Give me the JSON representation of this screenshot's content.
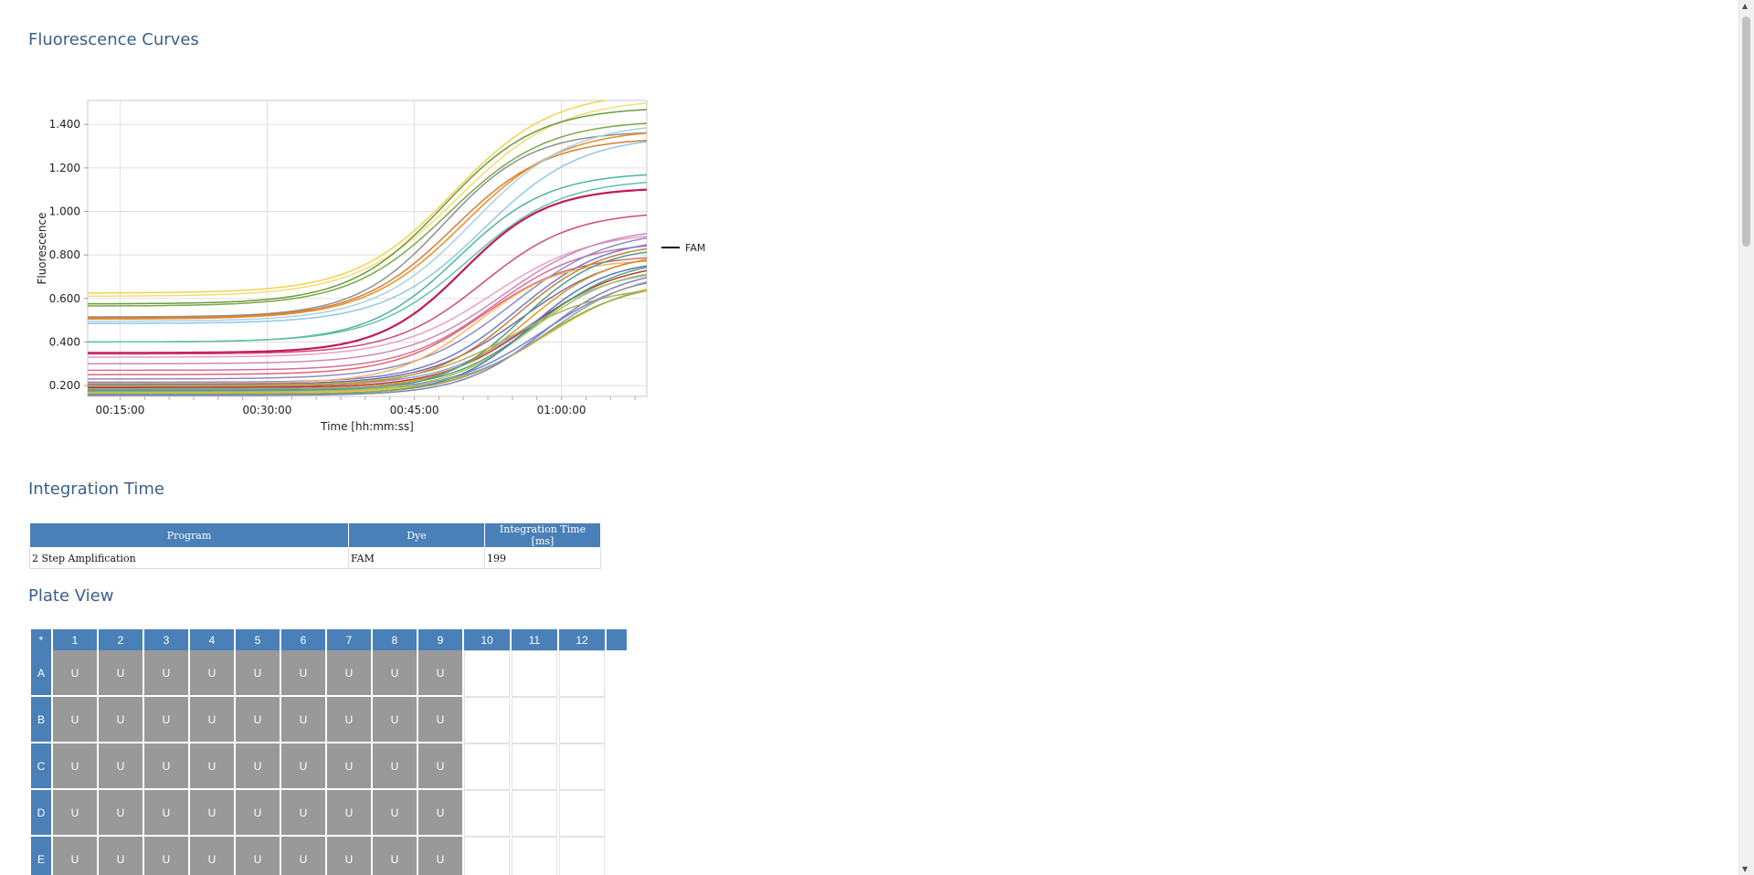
{
  "sections": {
    "fluorescence_title": "Fluorescence Curves",
    "integration_title": "Integration Time",
    "plate_title": "Plate View"
  },
  "chart_data": {
    "type": "line",
    "xlabel": "Time [hh:mm:ss]",
    "ylabel": "Fluorescence",
    "x_ticks": [
      "00:15:00",
      "00:30:00",
      "00:45:00",
      "01:00:00"
    ],
    "x_tick_minutes": [
      15,
      30,
      45,
      60
    ],
    "xlim_minutes": [
      11.7,
      68.7
    ],
    "y_ticks": [
      "0.200",
      "0.400",
      "0.600",
      "0.800",
      "1.000",
      "1.200",
      "1.400"
    ],
    "y_tick_values": [
      0.2,
      0.4,
      0.6,
      0.8,
      1.0,
      1.2,
      1.4
    ],
    "ylim": [
      0.15,
      1.51
    ],
    "grid": true,
    "legend": {
      "position": "right",
      "entries": [
        "FAM"
      ]
    },
    "curve_model": "sigmoid: y = base + (plateau - base) / (1 + exp(-(t_minutes - midpoint)/slope))",
    "series": [
      {
        "base": 0.625,
        "plateau": 1.55,
        "midpoint": 49.0,
        "slope": 5.0,
        "color": "#f2d24f"
      },
      {
        "base": 0.61,
        "plateau": 1.52,
        "midpoint": 49.5,
        "slope": 5.2,
        "color": "#f5dc74"
      },
      {
        "base": 0.575,
        "plateau": 1.48,
        "midpoint": 48.0,
        "slope": 4.8,
        "color": "#6c9a3c"
      },
      {
        "base": 0.565,
        "plateau": 1.42,
        "midpoint": 48.5,
        "slope": 5.0,
        "color": "#7aa848"
      },
      {
        "base": 0.515,
        "plateau": 1.37,
        "midpoint": 48.0,
        "slope": 4.5,
        "color": "#909090"
      },
      {
        "base": 0.51,
        "plateau": 1.34,
        "midpoint": 49.0,
        "slope": 4.8,
        "color": "#d1803a"
      },
      {
        "base": 0.505,
        "plateau": 1.38,
        "midpoint": 50.0,
        "slope": 5.0,
        "color": "#f08a24"
      },
      {
        "base": 0.495,
        "plateau": 1.41,
        "midpoint": 51.0,
        "slope": 5.0,
        "color": "#a7d1ea"
      },
      {
        "base": 0.485,
        "plateau": 1.35,
        "midpoint": 52.0,
        "slope": 5.0,
        "color": "#8fc8e8"
      },
      {
        "base": 0.4,
        "plateau": 1.18,
        "midpoint": 49.5,
        "slope": 4.6,
        "color": "#4fb39e"
      },
      {
        "base": 0.4,
        "plateau": 1.15,
        "midpoint": 50.5,
        "slope": 4.8,
        "color": "#66c2a5"
      },
      {
        "base": 0.35,
        "plateau": 1.11,
        "midpoint": 50.0,
        "slope": 4.3,
        "color": "#c2185b"
      },
      {
        "base": 0.345,
        "plateau": 1.0,
        "midpoint": 52.0,
        "slope": 4.6,
        "color": "#d04a78"
      },
      {
        "base": 0.33,
        "plateau": 0.91,
        "midpoint": 53.0,
        "slope": 5.0,
        "color": "#e8a0c0"
      },
      {
        "base": 0.3,
        "plateau": 0.93,
        "midpoint": 54.0,
        "slope": 5.0,
        "color": "#cc88bb"
      },
      {
        "base": 0.27,
        "plateau": 0.86,
        "midpoint": 53.0,
        "slope": 4.6,
        "color": "#d46fa0"
      },
      {
        "base": 0.25,
        "plateau": 0.8,
        "midpoint": 52.0,
        "slope": 4.5,
        "color": "#e06666"
      },
      {
        "base": 0.23,
        "plateau": 0.92,
        "midpoint": 55.0,
        "slope": 5.0,
        "color": "#8c8cc8"
      },
      {
        "base": 0.215,
        "plateau": 0.88,
        "midpoint": 55.5,
        "slope": 4.5,
        "color": "#6f7fc8"
      },
      {
        "base": 0.21,
        "plateau": 0.78,
        "midpoint": 51.5,
        "slope": 4.2,
        "color": "#f7b267"
      },
      {
        "base": 0.205,
        "plateau": 0.82,
        "midpoint": 56.0,
        "slope": 4.8,
        "color": "#7b68a6"
      },
      {
        "base": 0.2,
        "plateau": 0.74,
        "midpoint": 56.5,
        "slope": 4.5,
        "color": "#9aa0d4"
      },
      {
        "base": 0.195,
        "plateau": 0.86,
        "midpoint": 55.5,
        "slope": 4.4,
        "color": "#c77c3a"
      },
      {
        "base": 0.19,
        "plateau": 0.77,
        "midpoint": 57.0,
        "slope": 4.6,
        "color": "#b23a48"
      },
      {
        "base": 0.185,
        "plateau": 0.81,
        "midpoint": 56.5,
        "slope": 4.2,
        "color": "#d89a2b"
      },
      {
        "base": 0.18,
        "plateau": 0.79,
        "midpoint": 57.5,
        "slope": 4.5,
        "color": "#5aa36b"
      },
      {
        "base": 0.175,
        "plateau": 0.84,
        "midpoint": 56.0,
        "slope": 4.0,
        "color": "#4c9c8c"
      },
      {
        "base": 0.172,
        "plateau": 0.72,
        "midpoint": 58.0,
        "slope": 4.6,
        "color": "#6a8ac8"
      },
      {
        "base": 0.17,
        "plateau": 0.75,
        "midpoint": 57.0,
        "slope": 4.4,
        "color": "#a0c85a"
      },
      {
        "base": 0.165,
        "plateau": 0.7,
        "midpoint": 58.5,
        "slope": 4.8,
        "color": "#e0c040"
      },
      {
        "base": 0.16,
        "plateau": 0.78,
        "midpoint": 56.8,
        "slope": 4.0,
        "color": "#5577bb"
      },
      {
        "base": 0.158,
        "plateau": 0.68,
        "midpoint": 57.8,
        "slope": 4.6,
        "color": "#88b04b"
      },
      {
        "base": 0.155,
        "plateau": 0.74,
        "midpoint": 58.2,
        "slope": 4.2,
        "color": "#7f7fbf"
      },
      {
        "base": 0.2,
        "plateau": 0.66,
        "midpoint": 55.0,
        "slope": 4.8,
        "color": "#aeb05a"
      },
      {
        "base": 0.185,
        "plateau": 0.73,
        "midpoint": 59.0,
        "slope": 4.4,
        "color": "#9e9e9e"
      }
    ]
  },
  "integration_table": {
    "headers": [
      "Program",
      "Dye",
      "Integration Time [ms]"
    ],
    "rows": [
      [
        "2 Step Amplification",
        "FAM",
        "199"
      ]
    ]
  },
  "plate": {
    "corner": "*",
    "columns": [
      "1",
      "2",
      "3",
      "4",
      "5",
      "6",
      "7",
      "8",
      "9",
      "10",
      "11",
      "12"
    ],
    "rows": [
      "A",
      "B",
      "C",
      "D",
      "E"
    ],
    "filled_columns": 9,
    "well_label": "U"
  },
  "colors": {
    "header_blue": "#4a80b8",
    "title_blue": "#3a5f8a",
    "well_grey": "#999999"
  }
}
